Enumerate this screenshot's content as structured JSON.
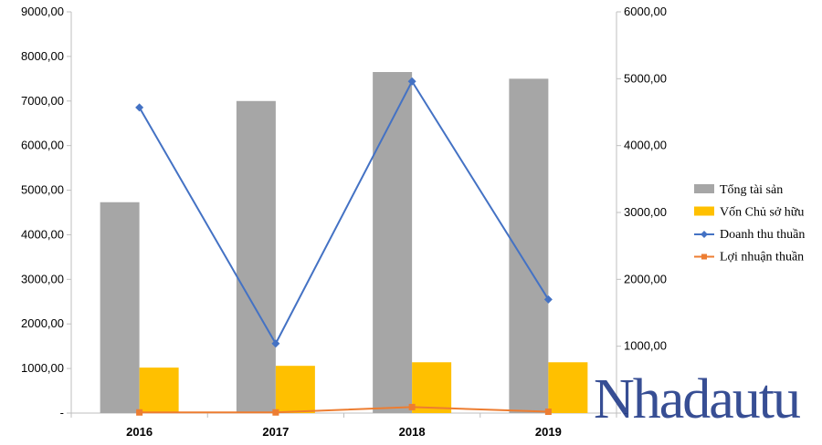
{
  "chart_data": {
    "type": "bar",
    "categories": [
      "2016",
      "2017",
      "2018",
      "2019"
    ],
    "bar_series": [
      {
        "name": "Tổng tài sản",
        "color": "#a6a6a6",
        "values": [
          4730,
          7000,
          7650,
          7500
        ]
      },
      {
        "name": "Vốn Chủ sở hữu",
        "color": "#ffc000",
        "values": [
          1020,
          1060,
          1140,
          1140
        ]
      }
    ],
    "line_series": [
      {
        "name": "Doanh thu thuần",
        "color": "#4472c4",
        "marker": "diamond",
        "axis": "right",
        "values": [
          4570,
          1040,
          4960,
          1700
        ]
      },
      {
        "name": "Lợi nhuận thuần",
        "color": "#ed7d31",
        "marker": "square",
        "axis": "right",
        "values": [
          10,
          10,
          90,
          20
        ]
      }
    ],
    "y_left": {
      "ylim": [
        0,
        9000
      ],
      "ticks": [
        0,
        1000,
        2000,
        3000,
        4000,
        5000,
        6000,
        7000,
        8000,
        9000
      ],
      "tick_labels": [
        "-",
        "1000,00",
        "2000,00",
        "3000,00",
        "4000,00",
        "5000,00",
        "6000,00",
        "7000,00",
        "8000,00",
        "9000,00"
      ]
    },
    "y_right": {
      "ylim": [
        0,
        6000
      ],
      "ticks": [
        0,
        1000,
        2000,
        3000,
        4000,
        5000,
        6000
      ],
      "tick_labels": [
        "-",
        "1000,00",
        "2000,00",
        "3000,00",
        "4000,00",
        "5000,00",
        "6000,00"
      ]
    },
    "grid": false,
    "legend_position": "right"
  },
  "watermark": {
    "text": "Nhadautu"
  }
}
